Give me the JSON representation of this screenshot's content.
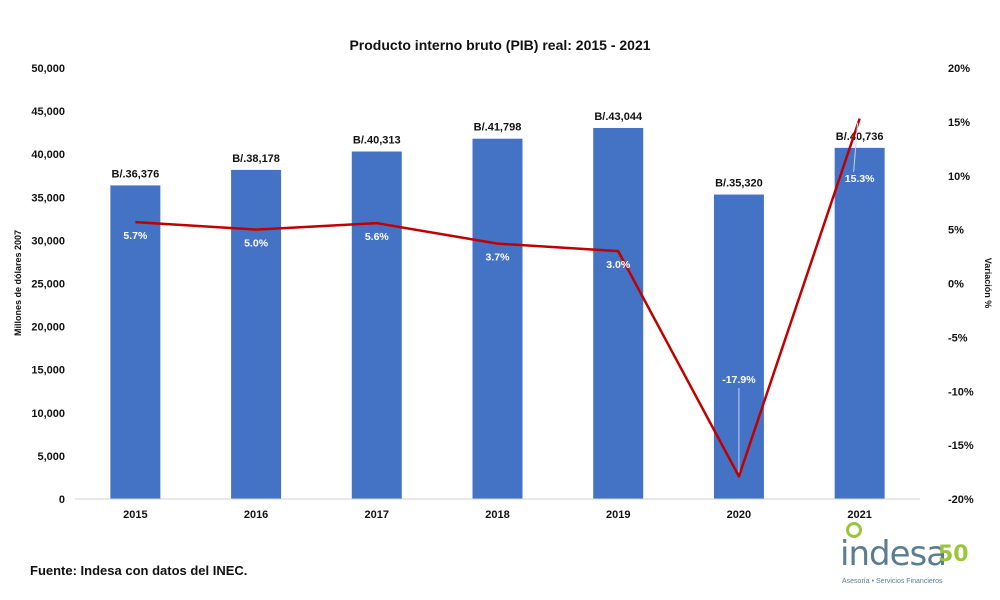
{
  "chart_data": {
    "type": "bar",
    "title": "Producto interno bruto (PIB) real: 2015 - 2021",
    "categories": [
      "2015",
      "2016",
      "2017",
      "2018",
      "2019",
      "2020",
      "2021"
    ],
    "ylabel": "Millones de dólares 2007",
    "y2label": "Variación %",
    "ylim": [
      0,
      50000
    ],
    "y2lim": [
      -20,
      20
    ],
    "yticks": [
      "0",
      "5,000",
      "10,000",
      "15,000",
      "20,000",
      "25,000",
      "30,000",
      "35,000",
      "40,000",
      "45,000",
      "50,000"
    ],
    "y2ticks": [
      "-20%",
      "-15%",
      "-10%",
      "-5%",
      "0%",
      "5%",
      "10%",
      "15%",
      "20%"
    ],
    "series": [
      {
        "type": "bar",
        "axis": "left",
        "values": [
          36376,
          38178,
          40313,
          41798,
          43044,
          35320,
          40736
        ],
        "labels": [
          "B/.36,376",
          "B/.38,178",
          "B/.40,313",
          "B/.41,798",
          "B/.43,044",
          "B/.35,320",
          "B/.40,736"
        ],
        "color": "#4472c4"
      },
      {
        "type": "line",
        "axis": "right",
        "values": [
          5.7,
          5.0,
          5.6,
          3.7,
          3.0,
          -17.9,
          15.3
        ],
        "labels": [
          "5.7%",
          "5.0%",
          "5.6%",
          "3.7%",
          "3.0%",
          "-17.9%",
          "15.3%"
        ],
        "color": "#c00000"
      }
    ],
    "grid": false
  },
  "footer": {
    "source": "Fuente: Indesa con datos del INEC."
  },
  "logo": {
    "word": "indesa",
    "number": "50",
    "tagline": "Asesoría • Servicios Financieros"
  }
}
